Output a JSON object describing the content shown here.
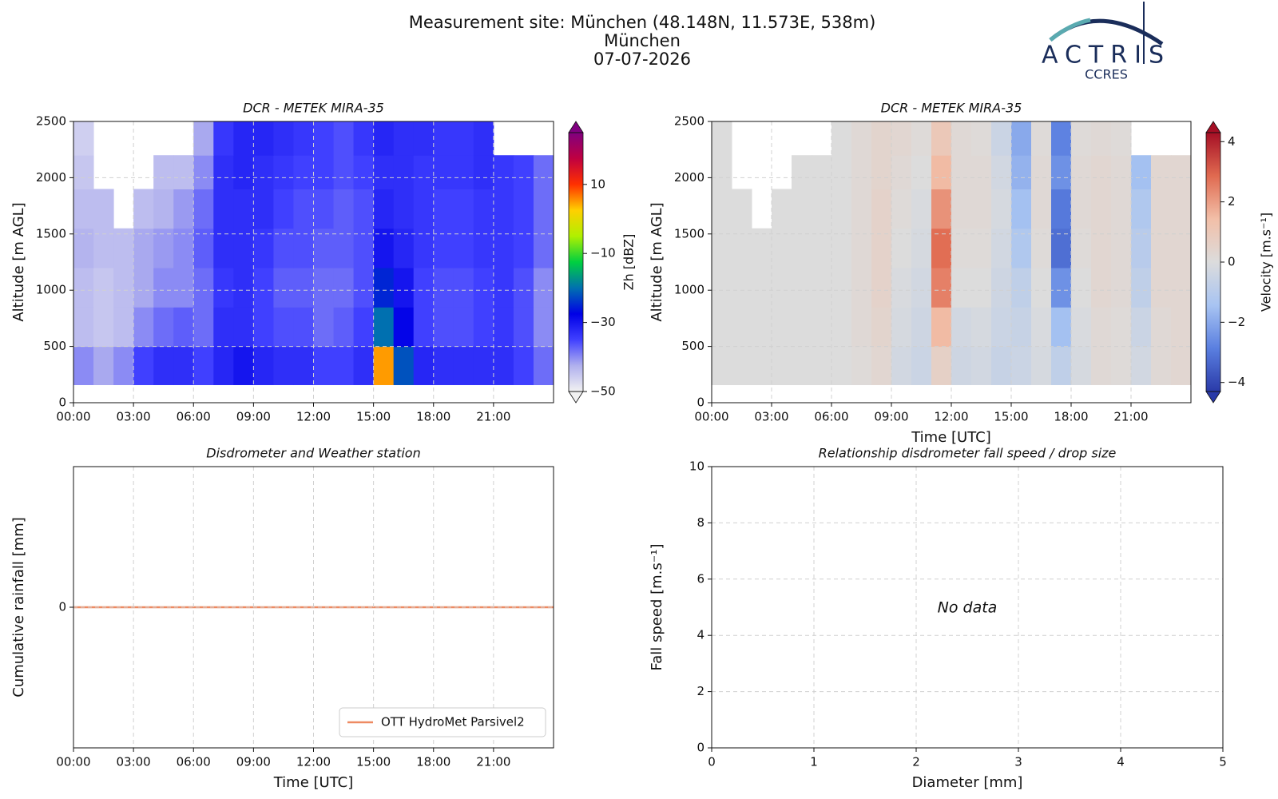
{
  "header": {
    "title": "Measurement site: München (48.148N, 11.573E, 538m)",
    "site": "München",
    "date": "07-07-2026"
  },
  "logo": {
    "name": "ACTRIS",
    "sub": "CCRES"
  },
  "chart_data": [
    {
      "type": "heatmap",
      "title": "DCR - METEK MIRA-35",
      "ylabel": "Altitude [m AGL]",
      "xlim": [
        0,
        24
      ],
      "xticks": [
        {
          "value": 0,
          "label": "00:00"
        },
        {
          "value": 3,
          "label": "03:00"
        },
        {
          "value": 6,
          "label": "06:00"
        },
        {
          "value": 9,
          "label": "09:00"
        },
        {
          "value": 12,
          "label": "12:00"
        },
        {
          "value": 15,
          "label": "15:00"
        },
        {
          "value": 18,
          "label": "18:00"
        },
        {
          "value": 21,
          "label": "21:00"
        }
      ],
      "ylim": [
        0,
        2500
      ],
      "yticks": [
        0,
        500,
        1000,
        1500,
        2000,
        2500
      ],
      "grid": true,
      "x_edges": [
        0,
        1,
        2,
        3,
        4,
        5,
        6,
        7,
        8,
        9,
        10,
        11,
        12,
        13,
        14,
        15,
        16,
        17,
        18,
        19,
        20,
        21,
        22,
        23,
        24
      ],
      "y_edges": [
        160,
        500,
        850,
        1200,
        1550,
        1900,
        2200,
        2500
      ],
      "z": [
        [
          -40,
          -42,
          -40,
          -35,
          -33,
          -33,
          -35,
          -32,
          -30,
          -32,
          -33,
          -33,
          -35,
          -35,
          -33,
          5,
          -22,
          -32,
          -33,
          -33,
          -33,
          -33,
          -35,
          -38
        ],
        [
          -44,
          -45,
          -44,
          -40,
          -38,
          -37,
          -38,
          -33,
          -33,
          -35,
          -36,
          -36,
          -38,
          -37,
          -35,
          -20,
          -28,
          -35,
          -36,
          -36,
          -35,
          -34,
          -36,
          -40
        ],
        [
          -44,
          -45,
          -44,
          -42,
          -40,
          -40,
          -38,
          -34,
          -33,
          -35,
          -37,
          -37,
          -38,
          -38,
          -36,
          -25,
          -30,
          -35,
          -36,
          -36,
          -35,
          -34,
          -36,
          -40
        ],
        [
          -43,
          -44,
          -44,
          -42,
          -41,
          -40,
          -37,
          -33,
          -33,
          -34,
          -36,
          -36,
          -37,
          -37,
          -36,
          -30,
          -32,
          -34,
          -35,
          -35,
          -34,
          -34,
          -35,
          -38
        ],
        [
          -44,
          -44,
          null,
          -44,
          -43,
          -41,
          -38,
          -33,
          -33,
          -33,
          -35,
          -36,
          -36,
          -37,
          -36,
          -32,
          -33,
          -34,
          -35,
          -35,
          -34,
          -34,
          -35,
          -38
        ],
        [
          -45,
          null,
          null,
          null,
          -44,
          -44,
          -40,
          -33,
          -32,
          -33,
          -34,
          -35,
          -35,
          -36,
          -35,
          -33,
          -33,
          -34,
          -34,
          -34,
          -33,
          -34,
          -35,
          -38
        ],
        [
          -46,
          null,
          null,
          null,
          null,
          null,
          -42,
          -34,
          -32,
          -32,
          -33,
          -34,
          -35,
          -36,
          -34,
          -32,
          -33,
          -33,
          -34,
          -34,
          -33,
          null,
          null,
          null
        ]
      ],
      "colorbar": {
        "label": "Zh [dBZ]",
        "lim": [
          -50,
          25
        ],
        "ticks": [
          {
            "value": -50,
            "label": "−50"
          },
          {
            "value": -30,
            "label": "−30"
          },
          {
            "value": -10,
            "label": "−10"
          },
          10
        ],
        "colors": [
          "#f2f2f2",
          "#b0b0ee",
          "#4040ff",
          "#0000e6",
          "#0070b0",
          "#00d040",
          "#b0f000",
          "#ffd000",
          "#ff3000",
          "#c00040",
          "#800080"
        ]
      }
    },
    {
      "type": "heatmap",
      "title": "DCR - METEK MIRA-35",
      "xlabel": "Time [UTC]",
      "ylabel": "Altitude [m AGL]",
      "xlim": [
        0,
        24
      ],
      "xticks": [
        {
          "value": 0,
          "label": "00:00"
        },
        {
          "value": 3,
          "label": "03:00"
        },
        {
          "value": 6,
          "label": "06:00"
        },
        {
          "value": 9,
          "label": "09:00"
        },
        {
          "value": 12,
          "label": "12:00"
        },
        {
          "value": 15,
          "label": "15:00"
        },
        {
          "value": 18,
          "label": "18:00"
        },
        {
          "value": 21,
          "label": "21:00"
        }
      ],
      "ylim": [
        0,
        2500
      ],
      "yticks": [
        0,
        500,
        1000,
        1500,
        2000,
        2500
      ],
      "grid": true,
      "x_edges": [
        0,
        1,
        2,
        3,
        4,
        5,
        6,
        7,
        8,
        9,
        10,
        11,
        12,
        13,
        14,
        15,
        16,
        17,
        18,
        19,
        20,
        21,
        22,
        23,
        24
      ],
      "y_edges": [
        160,
        500,
        850,
        1200,
        1550,
        1900,
        2200,
        2500
      ],
      "z": [
        [
          0,
          0,
          0,
          0,
          0,
          0,
          0,
          0.1,
          0.3,
          -0.3,
          -0.5,
          0.6,
          -0.4,
          -0.3,
          -0.6,
          -0.5,
          -0.2,
          -0.8,
          -0.2,
          0.2,
          0.1,
          -0.3,
          0.2,
          0.3
        ],
        [
          0,
          0,
          0,
          0,
          0,
          0,
          0,
          0.2,
          0.4,
          -0.2,
          -0.4,
          1.5,
          -0.3,
          -0.2,
          -0.5,
          -0.6,
          -0.1,
          -1.5,
          -0.1,
          0.2,
          0.1,
          -0.5,
          0.2,
          0.3
        ],
        [
          0,
          0,
          0,
          0,
          0,
          0,
          0,
          0.2,
          0.5,
          -0.1,
          -0.3,
          2.5,
          0,
          0,
          -0.4,
          -0.8,
          0,
          -2.5,
          0,
          0.3,
          0.2,
          -0.8,
          0.3,
          0.3
        ],
        [
          0,
          0,
          0,
          0,
          0,
          0,
          0,
          0.2,
          0.5,
          0,
          -0.2,
          2.8,
          0.1,
          0.1,
          -0.3,
          -1.2,
          0.1,
          -3.2,
          0.1,
          0.3,
          0.2,
          -1,
          0.3,
          0.3
        ],
        [
          0,
          0,
          null,
          0,
          0,
          0,
          0,
          0.2,
          0.5,
          0.1,
          -0.1,
          2.2,
          0.2,
          0.2,
          -0.2,
          -1.5,
          0.2,
          -3,
          0.2,
          0.3,
          0.2,
          -1.2,
          0.3,
          0.3
        ],
        [
          0,
          null,
          null,
          null,
          0,
          0,
          0,
          0.2,
          0.4,
          0.2,
          0,
          1.5,
          0.2,
          0.2,
          -0.3,
          -1.8,
          0.2,
          -2.5,
          0.2,
          0.3,
          0.2,
          -1.5,
          0.3,
          0.3
        ],
        [
          0,
          null,
          null,
          null,
          null,
          null,
          0,
          0.2,
          0.4,
          0.3,
          0.1,
          1,
          0.2,
          0.1,
          -0.5,
          -2,
          0.1,
          -2.8,
          0.1,
          0.2,
          0.1,
          null,
          null,
          null
        ]
      ],
      "colorbar": {
        "label": "Velocity [m.s⁻¹]",
        "lim": [
          -4.3,
          4.3
        ],
        "ticks": [
          {
            "value": -4,
            "label": "−4"
          },
          {
            "value": -2,
            "label": "−2"
          },
          0,
          2,
          4
        ],
        "colors": [
          "#2a3aa8",
          "#5a7fe0",
          "#a8c4f2",
          "#dcdcdc",
          "#f2bfa8",
          "#e06a50",
          "#a50f25"
        ]
      }
    },
    {
      "type": "line",
      "title": "Disdrometer and Weather station",
      "xlabel": "Time [UTC]",
      "ylabel": "Cumulative rainfall [mm]",
      "xlim": [
        0,
        24
      ],
      "xticks": [
        {
          "value": 0,
          "label": "00:00"
        },
        {
          "value": 3,
          "label": "03:00"
        },
        {
          "value": 6,
          "label": "06:00"
        },
        {
          "value": 9,
          "label": "09:00"
        },
        {
          "value": 12,
          "label": "12:00"
        },
        {
          "value": 15,
          "label": "15:00"
        },
        {
          "value": 18,
          "label": "18:00"
        },
        {
          "value": 21,
          "label": "21:00"
        }
      ],
      "ylim": [
        -0.05,
        0.05
      ],
      "yticks": [
        0
      ],
      "grid": true,
      "legend": "lower right",
      "x": [
        0,
        24
      ],
      "series": [
        {
          "name": "OTT HydroMet Parsivel2",
          "color": "#ee8a62",
          "values": [
            0,
            0
          ]
        }
      ]
    },
    {
      "type": "scatter",
      "title": "Relationship disdrometer fall speed / drop size",
      "xlabel": "Diameter [mm]",
      "ylabel": "Fall speed [m.s⁻¹]",
      "xlim": [
        0,
        5
      ],
      "xticks": [
        0,
        1,
        2,
        3,
        4,
        5
      ],
      "ylim": [
        0,
        10
      ],
      "yticks": [
        0,
        2,
        4,
        6,
        8,
        10
      ],
      "grid": true,
      "x": [],
      "y": [],
      "annotation": "No data"
    }
  ]
}
